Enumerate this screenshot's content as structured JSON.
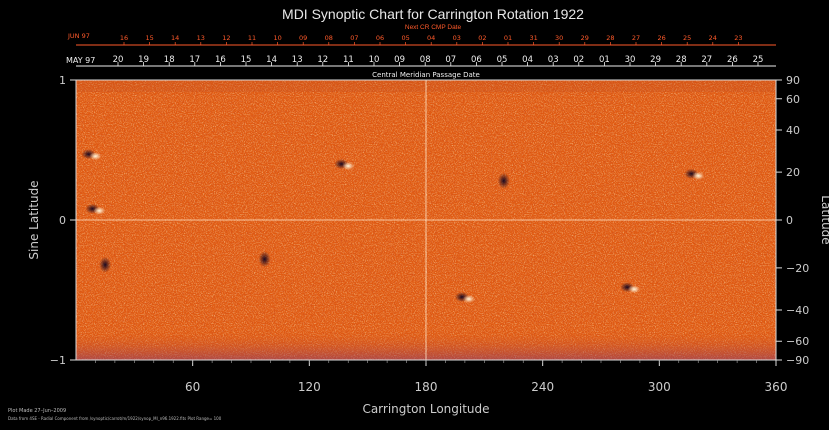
{
  "chart_data": {
    "type": "heatmap",
    "title": "MDI Synoptic Chart for Carrington Rotation 1922",
    "subtitle": "Next CR CMP Date",
    "top_axis_label": "Central Meridian Passage Date",
    "xlabel": "Carrington Longitude",
    "ylabel_left": "Sine Latitude",
    "ylabel_right": "Latitude",
    "xlim": [
      0,
      360
    ],
    "ylim": [
      -1,
      1
    ],
    "x_ticks": [
      60,
      120,
      180,
      240,
      300,
      360
    ],
    "y_ticks_left": [
      "1",
      "0",
      "−1"
    ],
    "y_ticks_right": [
      "90",
      "60",
      "40",
      "20",
      "0",
      "−20",
      "−40",
      "−60",
      "−90"
    ],
    "top_month_label": "MAY 97",
    "top_dates": [
      "20",
      "19",
      "18",
      "17",
      "16",
      "15",
      "14",
      "13",
      "12",
      "11",
      "10",
      "09",
      "08",
      "07",
      "06",
      "05",
      "04",
      "03",
      "02",
      "01",
      "30",
      "29",
      "28",
      "27",
      "26",
      "25"
    ],
    "next_cr_month_label": "JUN 97",
    "next_cr_dates": [
      "16",
      "15",
      "14",
      "13",
      "12",
      "11",
      "10",
      "09",
      "08",
      "07",
      "06",
      "05",
      "04",
      "03",
      "02",
      "01",
      "31",
      "30",
      "29",
      "28",
      "27",
      "26",
      "25",
      "24",
      "23"
    ],
    "grid": "crosshair at 0 latitude and 180 longitude",
    "colormap": "orange-red magnetogram",
    "regions": [
      {
        "longitude": 138,
        "sine_latitude": 0.4,
        "polarity": "bipolar"
      },
      {
        "longitude": 10,
        "sine_latitude": 0.08,
        "polarity": "bipolar"
      },
      {
        "longitude": 8,
        "sine_latitude": 0.47,
        "polarity": "bipolar"
      },
      {
        "longitude": 200,
        "sine_latitude": -0.55,
        "polarity": "bipolar"
      },
      {
        "longitude": 220,
        "sine_latitude": 0.28,
        "polarity": "negative"
      },
      {
        "longitude": 285,
        "sine_latitude": -0.48,
        "polarity": "bipolar"
      },
      {
        "longitude": 318,
        "sine_latitude": 0.33,
        "polarity": "bipolar"
      },
      {
        "longitude": 97,
        "sine_latitude": -0.28,
        "polarity": "negative"
      },
      {
        "longitude": 15,
        "sine_latitude": -0.32,
        "polarity": "negative"
      }
    ],
    "colors": {
      "background": "#000000",
      "field": "#e05a12",
      "positive": "#fff0c8",
      "negative": "#2a1030",
      "next_cr": "#ff5a2a",
      "text": "#dddddd"
    }
  },
  "footer": {
    "plot_made": "Plot Made 27–Jun–2009",
    "data_line": "Data from 4SE - Radial Component from /synoptic/carrot/m/1922/synop_Ml_n96.1922.fits Plot Range= 100"
  }
}
